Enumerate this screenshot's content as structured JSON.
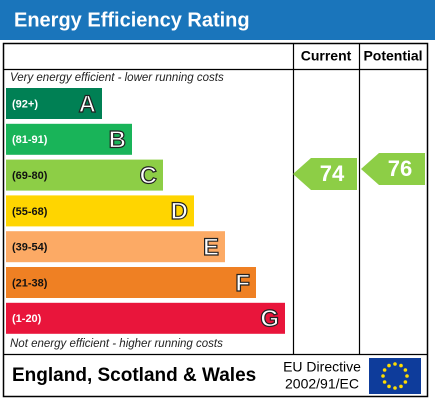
{
  "header": {
    "title": "Energy Efficiency Rating"
  },
  "columns": {
    "current": "Current",
    "potential": "Potential"
  },
  "top_note": "Very energy efficient - lower running costs",
  "bottom_note": "Not energy efficient - higher running costs",
  "bands": [
    {
      "range": "(92+)",
      "letter": "A",
      "color": "#008054"
    },
    {
      "range": "(81-91)",
      "letter": "B",
      "color": "#19b459"
    },
    {
      "range": "(69-80)",
      "letter": "C",
      "color": "#8dce46"
    },
    {
      "range": "(55-68)",
      "letter": "D",
      "color": "#ffd500"
    },
    {
      "range": "(39-54)",
      "letter": "E",
      "color": "#fcaa65"
    },
    {
      "range": "(21-38)",
      "letter": "F",
      "color": "#ef8023"
    },
    {
      "range": "(1-20)",
      "letter": "G",
      "color": "#e9153b"
    }
  ],
  "current": 74,
  "potential": 76,
  "footer": {
    "region": "England, Scotland & Wales",
    "directive_line1": "EU Directive",
    "directive_line2": "2002/91/EC"
  }
}
